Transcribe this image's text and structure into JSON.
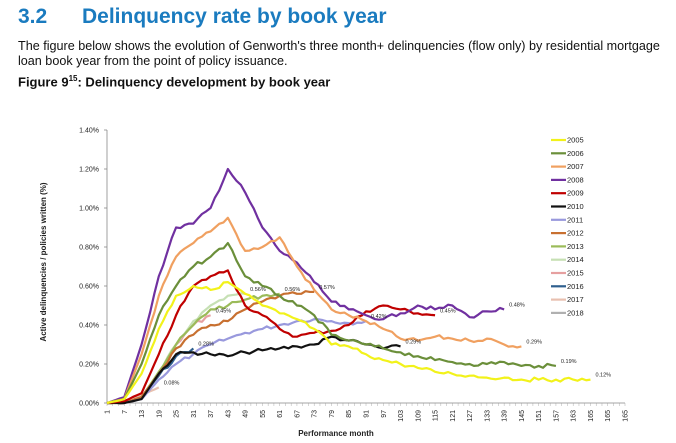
{
  "section": {
    "number": "3.2",
    "title": "Delinquency rate by book year"
  },
  "intro": "The figure below shows the evolution of Genworth's three month+ delinquencies (flow only) by residential mortgage loan book year from the point of policy issuance.",
  "figure": {
    "label": "Figure 9",
    "sup": "15",
    "caption": ": Delinquency development by book year"
  },
  "chart_data": {
    "type": "line",
    "title": "Delinquency development by book year",
    "xlabel": "Performance month",
    "ylabel": "Active delinquencies / policies written (%)",
    "ylim": [
      0,
      1.4
    ],
    "xlim": [
      1,
      181
    ],
    "y_ticks": [
      "0.00%",
      "0.20%",
      "0.40%",
      "0.60%",
      "0.80%",
      "1.00%",
      "1.20%",
      "1.40%"
    ],
    "x_ticks": [
      "1",
      "7",
      "13",
      "19",
      "25",
      "31",
      "37",
      "43",
      "49",
      "55",
      "61",
      "67",
      "73",
      "79",
      "85",
      "91",
      "97",
      "103",
      "109",
      "115",
      "121",
      "127",
      "133",
      "139",
      "145",
      "151",
      "157",
      "163",
      "165",
      "165",
      "165"
    ],
    "legend_position": "right",
    "series": [
      {
        "name": "2005",
        "color": "#f2f21a",
        "x": [
          1,
          7,
          13,
          19,
          25,
          31,
          37,
          43,
          49,
          55,
          61,
          67,
          73,
          79,
          85,
          91,
          97,
          103,
          109,
          115,
          121,
          127,
          133,
          139,
          145,
          151,
          157,
          163,
          169
        ],
        "values": [
          0,
          0.02,
          0.15,
          0.38,
          0.55,
          0.6,
          0.58,
          0.62,
          0.56,
          0.5,
          0.46,
          0.43,
          0.38,
          0.3,
          0.29,
          0.25,
          0.22,
          0.2,
          0.18,
          0.16,
          0.15,
          0.14,
          0.13,
          0.13,
          0.12,
          0.12,
          0.12,
          0.12,
          0.12
        ],
        "end_label": "0.12%"
      },
      {
        "name": "2006",
        "color": "#6b8f3a",
        "x": [
          1,
          7,
          13,
          19,
          25,
          31,
          37,
          43,
          49,
          55,
          61,
          67,
          73,
          79,
          85,
          91,
          97,
          103,
          109,
          115,
          121,
          127,
          133,
          139,
          145,
          151,
          157
        ],
        "values": [
          0,
          0.02,
          0.2,
          0.45,
          0.6,
          0.7,
          0.75,
          0.82,
          0.65,
          0.6,
          0.55,
          0.5,
          0.45,
          0.35,
          0.32,
          0.3,
          0.28,
          0.26,
          0.24,
          0.22,
          0.21,
          0.2,
          0.2,
          0.21,
          0.19,
          0.19,
          0.19
        ],
        "end_label": "0.19%"
      },
      {
        "name": "2007",
        "color": "#f0a060",
        "x": [
          1,
          7,
          13,
          19,
          25,
          31,
          37,
          43,
          49,
          55,
          61,
          67,
          73,
          79,
          85,
          91,
          97,
          103,
          109,
          115,
          121,
          127,
          133,
          139,
          145
        ],
        "values": [
          0,
          0.02,
          0.25,
          0.55,
          0.75,
          0.82,
          0.88,
          0.95,
          0.78,
          0.8,
          0.85,
          0.7,
          0.58,
          0.48,
          0.45,
          0.42,
          0.38,
          0.33,
          0.32,
          0.34,
          0.33,
          0.32,
          0.33,
          0.3,
          0.29
        ],
        "end_label": "0.29%"
      },
      {
        "name": "2008",
        "color": "#7030a0",
        "x": [
          1,
          7,
          13,
          19,
          25,
          31,
          37,
          43,
          49,
          55,
          61,
          67,
          73,
          79,
          85,
          91,
          97,
          103,
          109,
          115,
          121,
          127,
          133,
          139
        ],
        "values": [
          0,
          0.03,
          0.3,
          0.65,
          0.9,
          0.92,
          1.0,
          1.2,
          1.08,
          0.9,
          0.78,
          0.72,
          0.62,
          0.52,
          0.48,
          0.45,
          0.43,
          0.46,
          0.5,
          0.48,
          0.5,
          0.44,
          0.47,
          0.48
        ],
        "end_label": "0.48%"
      },
      {
        "name": "2009",
        "color": "#c00000",
        "x": [
          1,
          7,
          13,
          19,
          25,
          31,
          37,
          43,
          49,
          55,
          61,
          67,
          73,
          79,
          85,
          91,
          97,
          103,
          109,
          115
        ],
        "values": [
          0,
          0.01,
          0.05,
          0.25,
          0.45,
          0.6,
          0.65,
          0.68,
          0.5,
          0.45,
          0.38,
          0.34,
          0.36,
          0.37,
          0.4,
          0.47,
          0.5,
          0.48,
          0.46,
          0.45
        ],
        "end_label": "0.45%"
      },
      {
        "name": "2010",
        "color": "#111111",
        "x": [
          1,
          7,
          13,
          19,
          25,
          31,
          37,
          43,
          49,
          55,
          61,
          67,
          73,
          79,
          85,
          91,
          97,
          103
        ],
        "values": [
          0,
          0.0,
          0.02,
          0.15,
          0.25,
          0.26,
          0.25,
          0.24,
          0.26,
          0.27,
          0.28,
          0.29,
          0.3,
          0.34,
          0.32,
          0.3,
          0.28,
          0.29
        ],
        "end_label": "0.29%"
      },
      {
        "name": "2011",
        "color": "#9999dd",
        "x": [
          1,
          7,
          13,
          19,
          25,
          31,
          37,
          43,
          49,
          55,
          61,
          67,
          73,
          79,
          85,
          91
        ],
        "values": [
          0,
          0.0,
          0.02,
          0.12,
          0.2,
          0.25,
          0.3,
          0.33,
          0.36,
          0.38,
          0.4,
          0.42,
          0.43,
          0.42,
          0.41,
          0.42
        ],
        "end_label": "0.42%"
      },
      {
        "name": "2012",
        "color": "#c87030",
        "x": [
          1,
          7,
          13,
          19,
          25,
          31,
          37,
          43,
          49,
          55,
          61,
          67,
          73
        ],
        "values": [
          0,
          0.0,
          0.03,
          0.15,
          0.28,
          0.35,
          0.4,
          0.42,
          0.48,
          0.52,
          0.55,
          0.56,
          0.57
        ],
        "end_label": "0.57%"
      },
      {
        "name": "2013",
        "color": "#9bbb59",
        "x": [
          1,
          7,
          13,
          19,
          25,
          31,
          37,
          43,
          49,
          55,
          61
        ],
        "values": [
          0,
          0.0,
          0.03,
          0.16,
          0.3,
          0.4,
          0.48,
          0.5,
          0.53,
          0.55,
          0.56
        ],
        "end_label": "0.56%"
      },
      {
        "name": "2014",
        "color": "#c6e0b4",
        "x": [
          1,
          7,
          13,
          19,
          25,
          31,
          37,
          43,
          49
        ],
        "values": [
          0,
          0.0,
          0.03,
          0.15,
          0.3,
          0.42,
          0.5,
          0.55,
          0.56
        ],
        "end_label": "0.56%"
      },
      {
        "name": "2015",
        "color": "#e6a0a0",
        "x": [
          1,
          7,
          13,
          19,
          25,
          31,
          37
        ],
        "values": [
          0,
          0.0,
          0.03,
          0.15,
          0.3,
          0.4,
          0.45
        ],
        "end_label": "0.45%"
      },
      {
        "name": "2016",
        "color": "#2e5f8e",
        "x": [
          1,
          7,
          13,
          19,
          25,
          31
        ],
        "values": [
          0,
          0.0,
          0.03,
          0.14,
          0.24,
          0.28
        ],
        "end_label": "0.28%"
      },
      {
        "name": "2017",
        "color": "#e8c0b0",
        "x": [
          1,
          7,
          13,
          19
        ],
        "values": [
          0,
          0.01,
          0.04,
          0.08
        ],
        "end_label": "0.08%"
      },
      {
        "name": "2018",
        "color": "#b0b0b0",
        "x": [
          1,
          7
        ],
        "values": [
          0,
          0.01
        ],
        "end_label": ""
      }
    ]
  }
}
